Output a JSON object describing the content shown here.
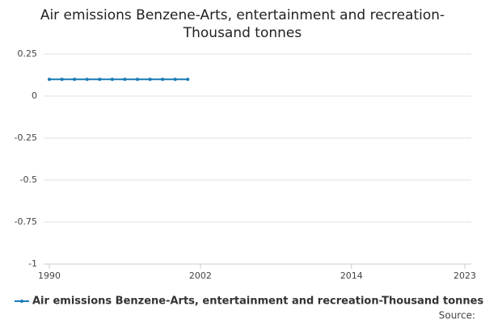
{
  "chart_data": {
    "type": "line",
    "title": "Air emissions Benzene-Arts, entertainment and recreation-Thousand tonnes",
    "x": [
      1990,
      1991,
      1992,
      1993,
      1994,
      1995,
      1996,
      1997,
      1998,
      1999,
      2000,
      2001
    ],
    "series": [
      {
        "name": "Air emissions Benzene-Arts, entertainment and recreation-Thousand tonnes",
        "color": "#1a7ab5",
        "values": [
          0.1,
          0.1,
          0.1,
          0.1,
          0.1,
          0.1,
          0.1,
          0.1,
          0.1,
          0.1,
          0.1,
          0.1
        ]
      }
    ],
    "xlim": [
      1990,
      2023
    ],
    "xticks": [
      1990,
      2002,
      2014,
      2023
    ],
    "ylim": [
      -1,
      0.25
    ],
    "yticks": [
      0.25,
      0,
      -0.25,
      -0.5,
      -0.75,
      -1
    ],
    "grid": true,
    "legend": "bottom",
    "source": "Source:"
  }
}
